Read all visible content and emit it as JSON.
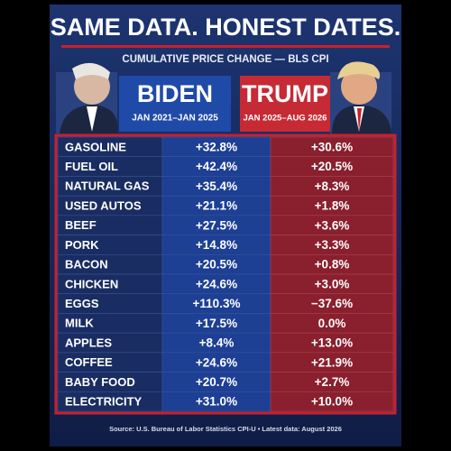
{
  "header": {
    "title": "SAME DATA. HONEST DATES.",
    "subtitle": "CUMULATIVE PRICE CHANGE — BLS CPI"
  },
  "columns": [
    {
      "name": "BIDEN",
      "dates": "JAN 2021–JAN 2025"
    },
    {
      "name": "TRUMP",
      "dates": "JAN 2025–AUG 2026"
    }
  ],
  "table": {
    "rows": [
      [
        "GASOLINE",
        "+32.8%",
        "+30.6%"
      ],
      [
        "FUEL OIL",
        "+42.4%",
        "+20.5%"
      ],
      [
        "NATURAL GAS",
        "+35.4%",
        "+8.3%"
      ],
      [
        "USED AUTOS",
        "+21.1%",
        "+1.8%"
      ],
      [
        "BEEF",
        "+27.5%",
        "+3.6%"
      ],
      [
        "PORK",
        "+14.8%",
        "+3.3%"
      ],
      [
        "BACON",
        "+20.5%",
        "+0.8%"
      ],
      [
        "CHICKEN",
        "+24.6%",
        "+3.0%"
      ],
      [
        "EGGS",
        "+110.3%",
        "−37.6%"
      ],
      [
        "MILK",
        "+17.5%",
        "0.0%"
      ],
      [
        "APPLES",
        "+8.4%",
        "+13.0%"
      ],
      [
        "COFFEE",
        "+24.6%",
        "+21.9%"
      ],
      [
        "BABY FOOD",
        "+20.7%",
        "+2.7%"
      ],
      [
        "ELECTRICITY",
        "+31.0%",
        "+10.0%"
      ]
    ]
  },
  "footer": "Source: U.S. Bureau of Labor Statistics CPI-U • Latest data: August 2026"
}
